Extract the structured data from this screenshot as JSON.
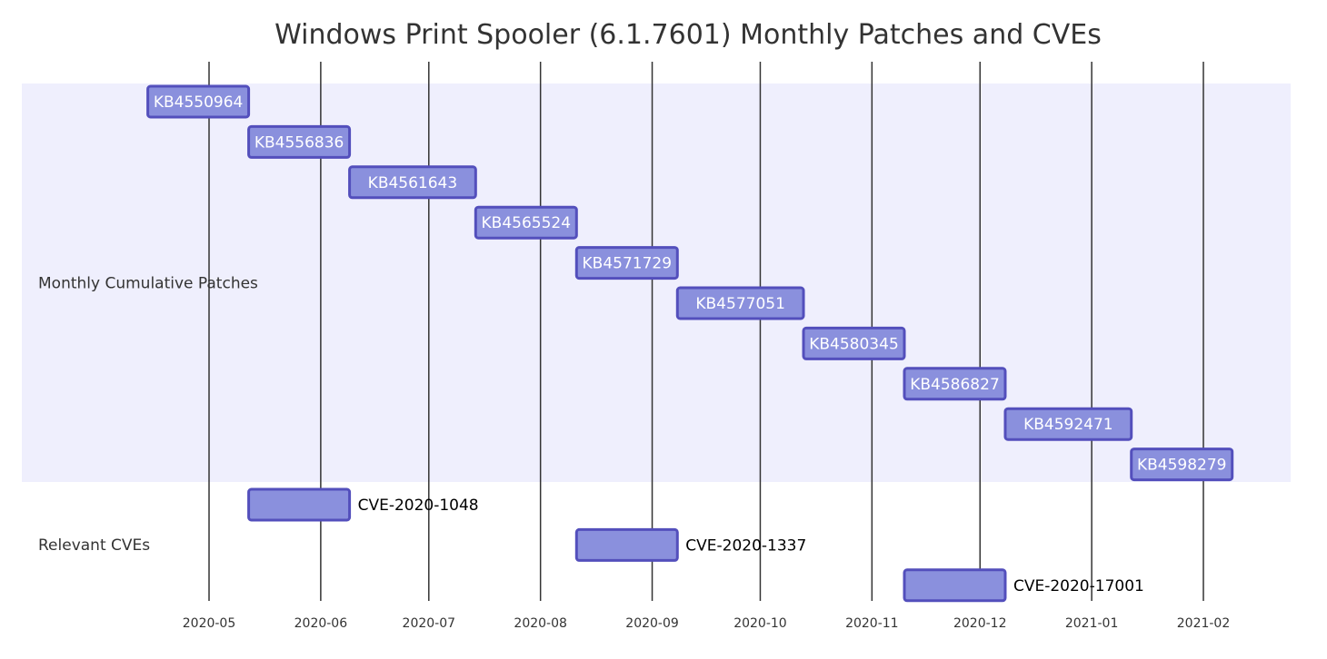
{
  "chart_data": {
    "type": "gantt",
    "title": "Windows Print Spooler (6.1.7601) Monthly Patches and CVEs",
    "x_ticks": [
      "2020-05",
      "2020-06",
      "2020-07",
      "2020-08",
      "2020-09",
      "2020-10",
      "2020-11",
      "2020-12",
      "2021-01",
      "2021-02"
    ],
    "grid": true,
    "sections": [
      {
        "name": "Monthly Cumulative Patches",
        "tasks": [
          {
            "label": "KB4550964",
            "start": "2020-04-14",
            "end": "2020-05-12"
          },
          {
            "label": "KB4556836",
            "start": "2020-05-12",
            "end": "2020-06-09"
          },
          {
            "label": "KB4561643",
            "start": "2020-06-09",
            "end": "2020-07-14"
          },
          {
            "label": "KB4565524",
            "start": "2020-07-14",
            "end": "2020-08-11"
          },
          {
            "label": "KB4571729",
            "start": "2020-08-11",
            "end": "2020-09-08"
          },
          {
            "label": "KB4577051",
            "start": "2020-09-08",
            "end": "2020-10-13"
          },
          {
            "label": "KB4580345",
            "start": "2020-10-13",
            "end": "2020-11-10"
          },
          {
            "label": "KB4586827",
            "start": "2020-11-10",
            "end": "2020-12-08"
          },
          {
            "label": "KB4592471",
            "start": "2020-12-08",
            "end": "2021-01-12"
          },
          {
            "label": "KB4598279",
            "start": "2021-01-12",
            "end": "2021-02-09"
          }
        ]
      },
      {
        "name": "Relevant CVEs",
        "tasks": [
          {
            "label": "CVE-2020-1048",
            "start": "2020-05-12",
            "end": "2020-06-09"
          },
          {
            "label": "CVE-2020-1337",
            "start": "2020-08-11",
            "end": "2020-09-08"
          },
          {
            "label": "CVE-2020-17001",
            "start": "2020-11-10",
            "end": "2020-12-08"
          }
        ]
      }
    ],
    "colors": {
      "section_band": "#efeffd",
      "bar_fill": "#8a90dd",
      "bar_stroke": "#534fbc",
      "grid": "#333333",
      "text": "#333333"
    }
  }
}
